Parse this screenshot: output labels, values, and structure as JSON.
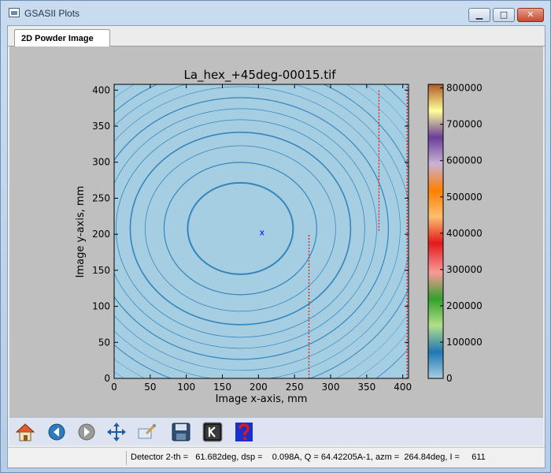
{
  "window": {
    "title": "GSASII Plots",
    "minimize_glyph": "▁",
    "maximize_glyph": "□",
    "close_glyph": "✕"
  },
  "tabs": [
    {
      "label": "2D Powder Image",
      "active": true
    }
  ],
  "plot": {
    "title": "La_hex_+45deg-00015.tif",
    "xlabel": "Image x-axis, mm",
    "ylabel": "Image y-axis, mm",
    "xticks": [
      "0",
      "50",
      "100",
      "150",
      "200",
      "250",
      "300",
      "350",
      "400"
    ],
    "yticks": [
      "0",
      "50",
      "100",
      "150",
      "200",
      "250",
      "300",
      "350",
      "400"
    ],
    "xlim": [
      0,
      408
    ],
    "ylim": [
      0,
      408
    ],
    "colorbar_ticks": [
      "0",
      "100000",
      "200000",
      "300000",
      "400000",
      "500000",
      "600000",
      "700000",
      "800000"
    ],
    "colorbar_range": [
      0,
      810000
    ],
    "colormap": "Paired",
    "background_color": "#a6cee3",
    "ring_color": "#1f78b4",
    "beam_center_marker": "x",
    "beam_center": [
      205,
      203
    ]
  },
  "toolbar": [
    {
      "name": "home-button",
      "icon": "home-icon"
    },
    {
      "name": "back-button",
      "icon": "arrow-left-icon"
    },
    {
      "name": "forward-button",
      "icon": "arrow-right-icon"
    },
    {
      "name": "pan-button",
      "icon": "move-icon"
    },
    {
      "name": "zoom-button",
      "icon": "zoom-rect-icon"
    },
    {
      "name": "save-button",
      "icon": "floppy-disk-icon"
    },
    {
      "name": "key-button",
      "icon": "k-key-icon"
    },
    {
      "name": "help-button",
      "icon": "question-mark-icon"
    }
  ],
  "status": {
    "text": "Detector 2-th =   61.682deg, dsp =    0.098A, Q = 64.42205A-1, azm =  264.84deg, I =     611"
  }
}
